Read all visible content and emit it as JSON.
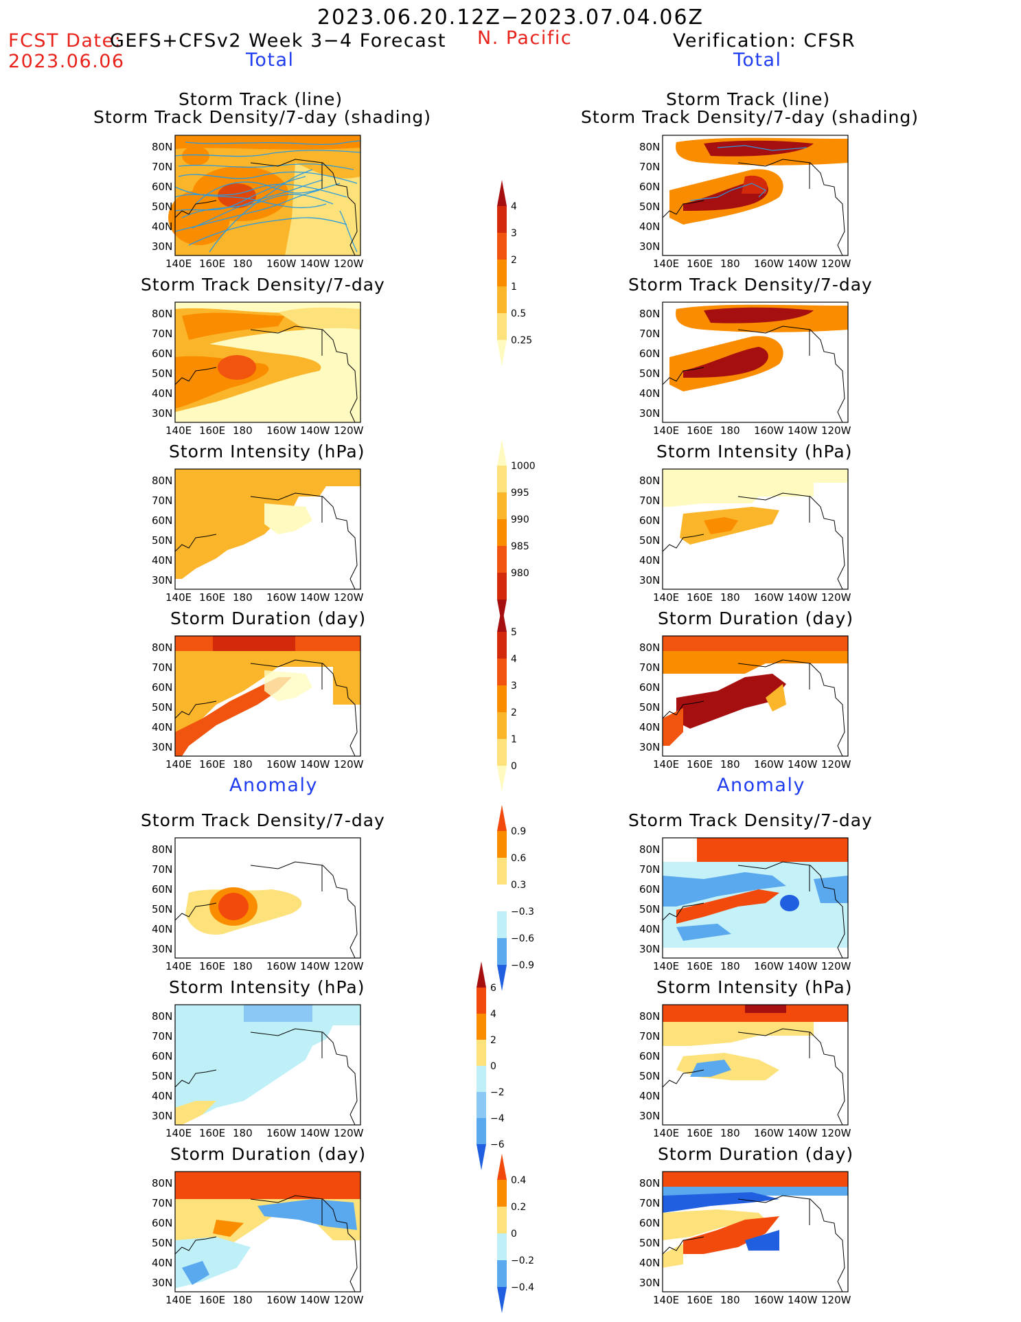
{
  "header": {
    "period": "2023.06.20.12Z−2023.07.04.06Z",
    "fcst_label": "FCST Date:",
    "fcst_product": "GEFS+CFSv2 Week 3−4 Forecast",
    "fcst_date": "2023.06.06",
    "region": "N. Pacific",
    "verification": "Verification: CFSR"
  },
  "sections": {
    "total_left": "Total",
    "total_right": "Total",
    "anomaly_left": "Anomaly",
    "anomaly_right": "Anomaly"
  },
  "panel_titles": {
    "track_line": "Storm Track (line)",
    "track_shading": "Storm Track Density/7-day (shading)",
    "density": "Storm Track Density/7-day",
    "intensity": "Storm Intensity (hPa)",
    "duration": "Storm Duration (day)"
  },
  "axes": {
    "lat_labels": [
      "80N",
      "70N",
      "60N",
      "50N",
      "40N",
      "30N"
    ],
    "lon_labels": [
      "140E",
      "160E",
      "180",
      "160W",
      "140W",
      "120W"
    ]
  },
  "colorbars": {
    "density_total": {
      "labels": [
        "4",
        "3",
        "2",
        "1",
        "0.5",
        "0.25"
      ],
      "colors": [
        "#a50f0f",
        "#d42a0c",
        "#f0540e",
        "#fa8c00",
        "#fbb52a",
        "#fde17a",
        "#fffbc0"
      ]
    },
    "intensity_total": {
      "labels": [
        "1000",
        "995",
        "990",
        "985",
        "980"
      ],
      "colors": [
        "#fffbc0",
        "#fde17a",
        "#fbb52a",
        "#fa8c00",
        "#f0540e",
        "#d42a0c",
        "#a50f0f"
      ]
    },
    "duration_total": {
      "labels": [
        "5",
        "4",
        "3",
        "2",
        "1",
        "0"
      ],
      "colors": [
        "#a50f0f",
        "#d42a0c",
        "#f0540e",
        "#fa8c00",
        "#fbb52a",
        "#fde17a",
        "#fffbc0"
      ]
    },
    "density_anom": {
      "labels": [
        "0.9",
        "0.6",
        "0.3",
        "−0.3",
        "−0.6",
        "−0.9"
      ],
      "colors": [
        "#f24a0c",
        "#fa8c00",
        "#fde17a",
        "#ffffff",
        "#bff0f8",
        "#5aa8ee",
        "#2060e0"
      ]
    },
    "intensity_anom": {
      "labels": [
        "6",
        "4",
        "2",
        "0",
        "−2",
        "−4",
        "−6"
      ],
      "colors": [
        "#a50f0f",
        "#f24a0c",
        "#fa8c00",
        "#fde17a",
        "#bff0f8",
        "#8cc8f4",
        "#5aa8ee",
        "#2060e0"
      ]
    },
    "duration_anom": {
      "labels": [
        "0.4",
        "0.2",
        "0",
        "−0.2",
        "−0.4"
      ],
      "colors": [
        "#f24a0c",
        "#fa8c00",
        "#fde17a",
        "#bff0f8",
        "#5aa8ee",
        "#2060e0"
      ]
    }
  },
  "colors": {
    "track_line": "#2b9be0",
    "land": "#000000"
  }
}
